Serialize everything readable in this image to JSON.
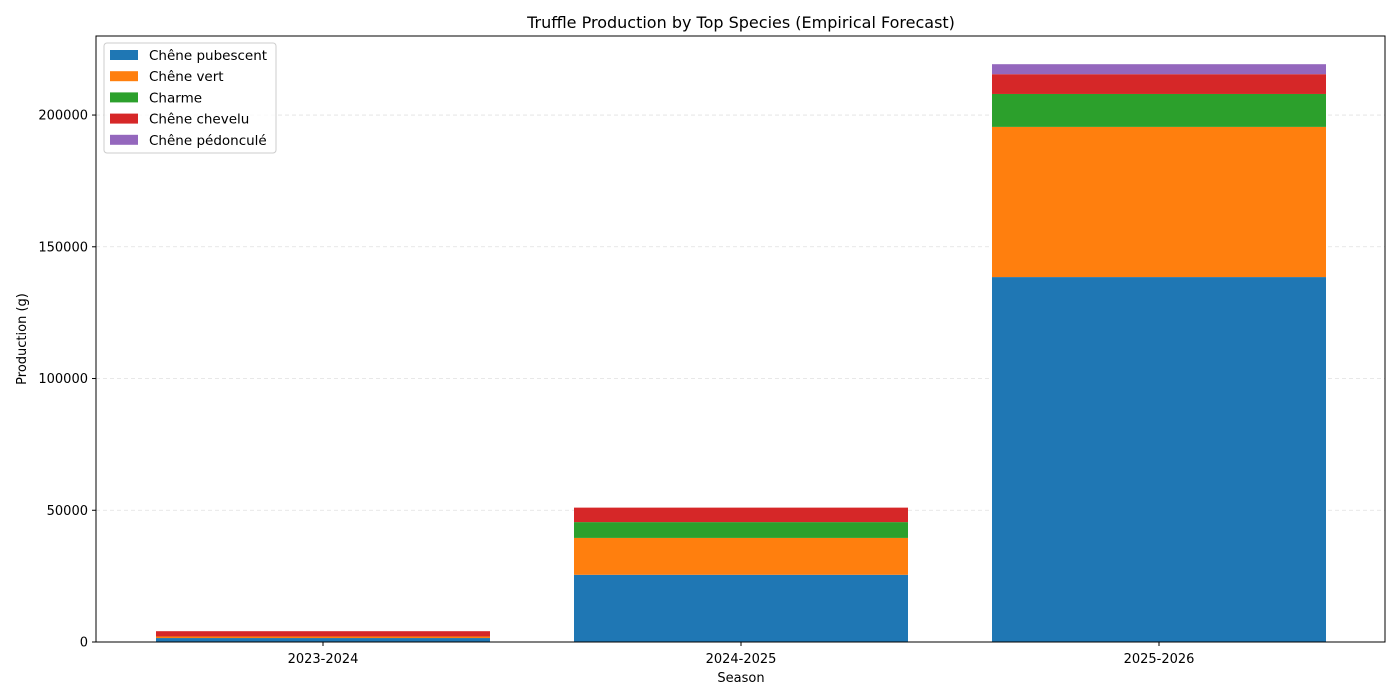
{
  "chart_data": {
    "type": "bar",
    "stacked": true,
    "title": "Truffle Production by Top Species (Empirical Forecast)",
    "xlabel": "Season",
    "ylabel": "Production (g)",
    "categories": [
      "2023-2024",
      "2024-2025",
      "2025-2026"
    ],
    "ylim": [
      0,
      230000
    ],
    "yticks": [
      0,
      50000,
      100000,
      150000,
      200000
    ],
    "grid": "y-dashed",
    "legend_position": "top-left",
    "series": [
      {
        "name": "Chêne pubescent",
        "color": "#1f77b4",
        "values": [
          1500,
          25500,
          138500
        ]
      },
      {
        "name": "Chêne vert",
        "color": "#ff7f0e",
        "values": [
          600,
          14000,
          57000
        ]
      },
      {
        "name": "Charme",
        "color": "#2ca02c",
        "values": [
          0,
          6000,
          12500
        ]
      },
      {
        "name": "Chêne chevelu",
        "color": "#d62728",
        "values": [
          2000,
          5500,
          7500
        ]
      },
      {
        "name": "Chêne pédonculé",
        "color": "#9467bd",
        "values": [
          0,
          0,
          3800
        ]
      }
    ]
  }
}
